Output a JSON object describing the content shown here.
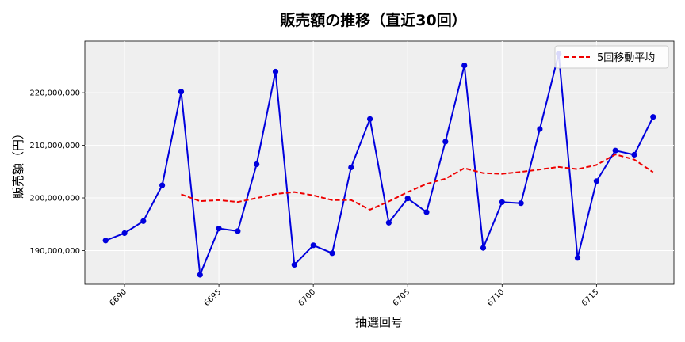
{
  "chart_data": {
    "type": "line",
    "title": "販売額の推移（直近30回）",
    "xlabel": "抽選回号",
    "ylabel": "販売額（円）",
    "xlim": [
      6687.9,
      6719.1
    ],
    "ylim": [
      183600000,
      229800000
    ],
    "xticks": [
      6690,
      6695,
      6700,
      6705,
      6710,
      6715
    ],
    "yticks": [
      190000000,
      200000000,
      210000000,
      220000000
    ],
    "yticklabels": [
      "190,000,000",
      "200,000,000",
      "210,000,000",
      "220,000,000"
    ],
    "grid": true,
    "legend_position": "top-right",
    "x": [
      6689,
      6690,
      6691,
      6692,
      6693,
      6694,
      6695,
      6696,
      6697,
      6698,
      6699,
      6700,
      6701,
      6702,
      6703,
      6704,
      6705,
      6706,
      6707,
      6708,
      6709,
      6710,
      6711,
      6712,
      6713,
      6714,
      6715,
      6716,
      6717,
      6718
    ],
    "series": [
      {
        "color": "#0000dd",
        "style": "solid-markers",
        "values": [
          191900000,
          193300000,
          195600000,
          202400000,
          220200000,
          185400000,
          194200000,
          193700000,
          206400000,
          224000000,
          187300000,
          191000000,
          189500000,
          205800000,
          215000000,
          195300000,
          199900000,
          197300000,
          210700000,
          225200000,
          190500000,
          199200000,
          199000000,
          213100000,
          227400000,
          188600000,
          203200000,
          209000000,
          208200000,
          215400000
        ]
      },
      {
        "name": "5回移動平均",
        "color": "#ee0000",
        "style": "dashed",
        "values": [
          null,
          null,
          null,
          null,
          200680000,
          199380000,
          199580000,
          199220000,
          199980000,
          200740000,
          201120000,
          200480000,
          199580000,
          199600000,
          197760000,
          199320000,
          201100000,
          202660000,
          203640000,
          205640000,
          204720000,
          204580000,
          204940000,
          205400000,
          205880000,
          205460000,
          206260000,
          208260000,
          207280000,
          204880000
        ]
      }
    ]
  }
}
